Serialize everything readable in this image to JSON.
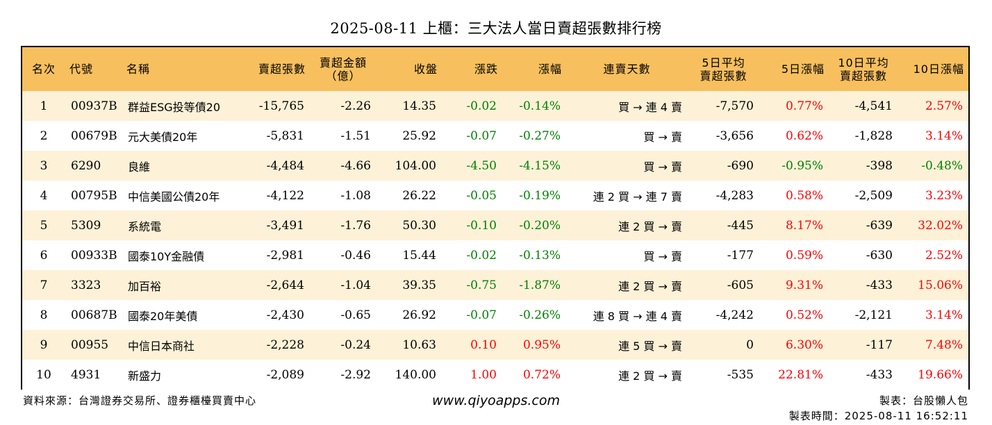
{
  "title": "2025-08-11 上櫃：三大法人當日賣超張數排行榜",
  "headers": {
    "rank": "名次",
    "code": "代號",
    "name": "名稱",
    "sell_qty": "賣超張數",
    "sell_amt_l1": "賣超金額",
    "sell_amt_l2": "（億）",
    "close": "收盤",
    "change": "漲跌",
    "pct": "漲幅",
    "streak": "連賣天數",
    "avg5_l1": "5日平均",
    "avg5_l2": "賣超張數",
    "pct5": "5日漲幅",
    "avg10_l1": "10日平均",
    "avg10_l2": "賣超張數",
    "pct10": "10日漲幅"
  },
  "rows": [
    {
      "rank": "1",
      "code": "00937B",
      "name": "群益ESG投等債20",
      "sell_qty": "-15,765",
      "sell_amt": "-2.26",
      "close": "14.35",
      "change": "-0.02",
      "pct": "-0.14%",
      "streak": "買 → 連 4 賣",
      "avg5": "-7,570",
      "pct5": "0.77%",
      "avg10": "-4,541",
      "pct10": "2.57%"
    },
    {
      "rank": "2",
      "code": "00679B",
      "name": "元大美債20年",
      "sell_qty": "-5,831",
      "sell_amt": "-1.51",
      "close": "25.92",
      "change": "-0.07",
      "pct": "-0.27%",
      "streak": "買 → 賣",
      "avg5": "-3,656",
      "pct5": "0.62%",
      "avg10": "-1,828",
      "pct10": "3.14%"
    },
    {
      "rank": "3",
      "code": "6290",
      "name": "良維",
      "sell_qty": "-4,484",
      "sell_amt": "-4.66",
      "close": "104.00",
      "change": "-4.50",
      "pct": "-4.15%",
      "streak": "買 → 賣",
      "avg5": "-690",
      "pct5": "-0.95%",
      "avg10": "-398",
      "pct10": "-0.48%"
    },
    {
      "rank": "4",
      "code": "00795B",
      "name": "中信美國公債20年",
      "sell_qty": "-4,122",
      "sell_amt": "-1.08",
      "close": "26.22",
      "change": "-0.05",
      "pct": "-0.19%",
      "streak": "連 2 買 → 連 7 賣",
      "avg5": "-4,283",
      "pct5": "0.58%",
      "avg10": "-2,509",
      "pct10": "3.23%"
    },
    {
      "rank": "5",
      "code": "5309",
      "name": "系統電",
      "sell_qty": "-3,491",
      "sell_amt": "-1.76",
      "close": "50.30",
      "change": "-0.10",
      "pct": "-0.20%",
      "streak": "連 2 買 → 賣",
      "avg5": "-445",
      "pct5": "8.17%",
      "avg10": "-639",
      "pct10": "32.02%"
    },
    {
      "rank": "6",
      "code": "00933B",
      "name": "國泰10Y金融債",
      "sell_qty": "-2,981",
      "sell_amt": "-0.46",
      "close": "15.44",
      "change": "-0.02",
      "pct": "-0.13%",
      "streak": "買 → 賣",
      "avg5": "-177",
      "pct5": "0.59%",
      "avg10": "-630",
      "pct10": "2.52%"
    },
    {
      "rank": "7",
      "code": "3323",
      "name": "加百裕",
      "sell_qty": "-2,644",
      "sell_amt": "-1.04",
      "close": "39.35",
      "change": "-0.75",
      "pct": "-1.87%",
      "streak": "連 2 買 → 賣",
      "avg5": "-605",
      "pct5": "9.31%",
      "avg10": "-433",
      "pct10": "15.06%"
    },
    {
      "rank": "8",
      "code": "00687B",
      "name": "國泰20年美債",
      "sell_qty": "-2,430",
      "sell_amt": "-0.65",
      "close": "26.92",
      "change": "-0.07",
      "pct": "-0.26%",
      "streak": "連 8 買 → 連 4 賣",
      "avg5": "-4,242",
      "pct5": "0.52%",
      "avg10": "-2,121",
      "pct10": "3.14%"
    },
    {
      "rank": "9",
      "code": "00955",
      "name": "中信日本商社",
      "sell_qty": "-2,228",
      "sell_amt": "-0.24",
      "close": "10.63",
      "change": "0.10",
      "pct": "0.95%",
      "streak": "連 5 買 → 賣",
      "avg5": "0",
      "pct5": "6.30%",
      "avg10": "-117",
      "pct10": "7.48%"
    },
    {
      "rank": "10",
      "code": "4931",
      "name": "新盛力",
      "sell_qty": "-2,089",
      "sell_amt": "-2.92",
      "close": "140.00",
      "change": "1.00",
      "pct": "0.72%",
      "streak": "連 2 買 → 賣",
      "avg5": "-535",
      "pct5": "22.81%",
      "avg10": "-433",
      "pct10": "19.66%"
    }
  ],
  "colors": {
    "header_bg": "#f7bf5e",
    "odd_row_bg": "#fdf1d7",
    "up": "#ff0000",
    "down": "#008000"
  },
  "footer": {
    "source": "資料來源：台灣證券交易所、證券櫃檯買賣中心",
    "site": "www.qiyoapps.com",
    "maker": "製表：台股懶人包",
    "time": "製表時間：2025-08-11 16:52:11"
  }
}
